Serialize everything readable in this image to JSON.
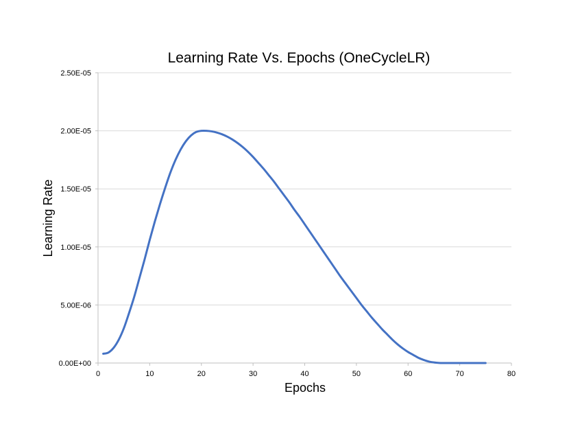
{
  "chart_data": {
    "type": "line",
    "title": "Learning Rate Vs. Epochs (OneCycleLR)",
    "xlabel": "Epochs",
    "ylabel": "Learning Rate",
    "xlim": [
      0,
      80
    ],
    "ylim": [
      0,
      2.5e-05
    ],
    "x_ticks": [
      0,
      10,
      20,
      30,
      40,
      50,
      60,
      70,
      80
    ],
    "x_tick_labels": [
      "0",
      "10",
      "20",
      "30",
      "40",
      "50",
      "60",
      "70",
      "80"
    ],
    "y_ticks": [
      0,
      5e-06,
      1e-05,
      1.5e-05,
      2e-05,
      2.5e-05
    ],
    "y_tick_labels": [
      "0.00E+00",
      "5.00E-06",
      "1.00E-05",
      "1.50E-05",
      "2.00E-05",
      "2.50E-05"
    ],
    "grid": {
      "horizontal": true,
      "vertical": false
    },
    "legend": "none",
    "colors": {
      "line": "#4472C4",
      "grid": "#D9D9D9",
      "axis": "#BFBFBF"
    },
    "series": [
      {
        "x": [
          1,
          2,
          3,
          4,
          5,
          6,
          7,
          8,
          9,
          10,
          11,
          12,
          13,
          14,
          15,
          16,
          17,
          18,
          19,
          20,
          21,
          22,
          23,
          24,
          25,
          26,
          27,
          28,
          29,
          30,
          31,
          32,
          33,
          34,
          35,
          36,
          37,
          38,
          39,
          40,
          41,
          42,
          43,
          44,
          45,
          46,
          47,
          48,
          49,
          50,
          51,
          52,
          53,
          54,
          55,
          56,
          57,
          58,
          59,
          60,
          61,
          62,
          63,
          64,
          65,
          66,
          67,
          68,
          69,
          70,
          71,
          72,
          73,
          74,
          75
        ],
        "values": [
          8e-07,
          9e-07,
          1.3e-06,
          2e-06,
          3e-06,
          4.3e-06,
          5.7e-06,
          7.3e-06,
          8.9e-06,
          1.06e-05,
          1.22e-05,
          1.37e-05,
          1.51e-05,
          1.64e-05,
          1.75e-05,
          1.84e-05,
          1.91e-05,
          1.96e-05,
          1.99e-05,
          2e-05,
          2e-05,
          1.995e-05,
          1.985e-05,
          1.97e-05,
          1.95e-05,
          1.925e-05,
          1.895e-05,
          1.86e-05,
          1.82e-05,
          1.775e-05,
          1.725e-05,
          1.675e-05,
          1.62e-05,
          1.565e-05,
          1.505e-05,
          1.445e-05,
          1.385e-05,
          1.32e-05,
          1.26e-05,
          1.195e-05,
          1.13e-05,
          1.065e-05,
          1e-05,
          9.35e-06,
          8.7e-06,
          8.05e-06,
          7.4e-06,
          6.8e-06,
          6.2e-06,
          5.6e-06,
          5e-06,
          4.45e-06,
          3.9e-06,
          3.4e-06,
          2.9e-06,
          2.45e-06,
          2e-06,
          1.6e-06,
          1.25e-06,
          9.5e-07,
          7e-07,
          4.5e-07,
          2.7e-07,
          1.3e-07,
          5e-08,
          1e-08,
          0,
          0,
          0,
          0,
          0,
          0,
          0,
          0,
          0
        ]
      }
    ]
  }
}
